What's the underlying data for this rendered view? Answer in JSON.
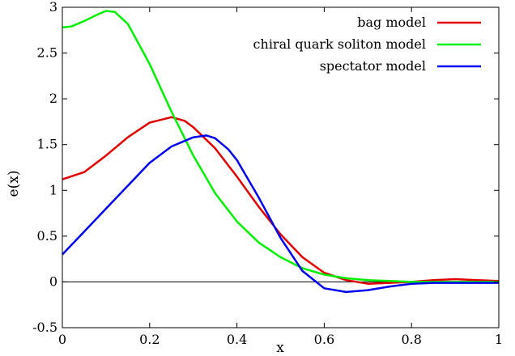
{
  "chart_data": {
    "type": "line",
    "title": "",
    "xlabel": "x",
    "ylabel": "e(x)",
    "xlim": [
      0,
      1
    ],
    "ylim": [
      -0.5,
      3
    ],
    "grid": false,
    "legend_position": "top-right",
    "x_ticks": [
      "0",
      "0.2",
      "0.4",
      "0.6",
      "0.8",
      "1"
    ],
    "y_ticks": [
      "-0.5",
      "0",
      "0.5",
      "1",
      "1.5",
      "2",
      "2.5",
      "3"
    ],
    "zero_line": true,
    "series": [
      {
        "name": "bag model",
        "color": "#e00000",
        "x": [
          0,
          0.05,
          0.1,
          0.15,
          0.2,
          0.25,
          0.28,
          0.3,
          0.35,
          0.4,
          0.45,
          0.5,
          0.55,
          0.6,
          0.65,
          0.7,
          0.75,
          0.8,
          0.85,
          0.9,
          0.95,
          1.0
        ],
        "y": [
          1.12,
          1.2,
          1.38,
          1.58,
          1.74,
          1.8,
          1.76,
          1.69,
          1.46,
          1.15,
          0.82,
          0.52,
          0.27,
          0.1,
          0.02,
          -0.02,
          -0.01,
          0.0,
          0.02,
          0.03,
          0.02,
          0.01
        ]
      },
      {
        "name": "chiral quark soliton model",
        "color": "#00ee00",
        "x": [
          0,
          0.02,
          0.05,
          0.08,
          0.1,
          0.12,
          0.15,
          0.2,
          0.25,
          0.3,
          0.35,
          0.4,
          0.45,
          0.5,
          0.55,
          0.6,
          0.65,
          0.7,
          0.75,
          0.8,
          0.85,
          0.9,
          0.95,
          1.0
        ],
        "y": [
          2.78,
          2.79,
          2.85,
          2.92,
          2.96,
          2.95,
          2.82,
          2.38,
          1.86,
          1.38,
          0.97,
          0.66,
          0.43,
          0.27,
          0.15,
          0.08,
          0.04,
          0.02,
          0.01,
          0.0,
          0.0,
          0.0,
          0.0,
          0.0
        ]
      },
      {
        "name": "spectator model",
        "color": "#0000ee",
        "x": [
          0,
          0.05,
          0.1,
          0.15,
          0.2,
          0.25,
          0.3,
          0.33,
          0.35,
          0.38,
          0.4,
          0.45,
          0.5,
          0.55,
          0.6,
          0.65,
          0.7,
          0.75,
          0.8,
          0.85,
          0.9,
          0.95,
          1.0
        ],
        "y": [
          0.3,
          0.55,
          0.8,
          1.05,
          1.3,
          1.48,
          1.58,
          1.6,
          1.57,
          1.45,
          1.33,
          0.92,
          0.48,
          0.12,
          -0.07,
          -0.11,
          -0.09,
          -0.05,
          -0.02,
          -0.01,
          -0.01,
          -0.01,
          -0.01
        ]
      }
    ]
  }
}
